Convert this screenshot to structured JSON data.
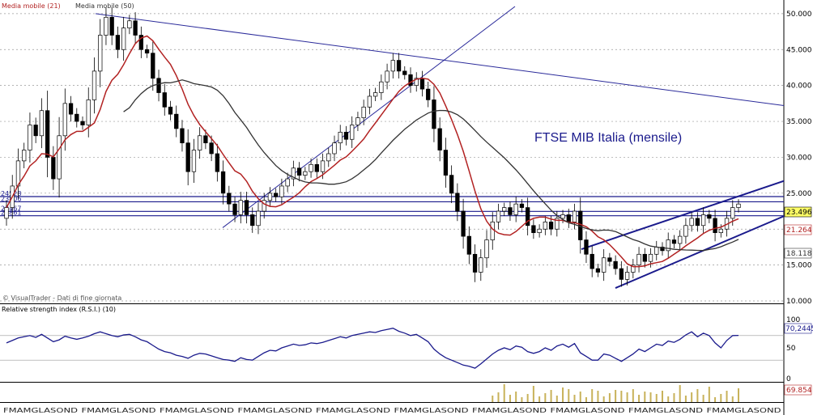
{
  "chart_data": {
    "type": "candlestick",
    "title": "FTSE MIB Italia (mensile)",
    "source_note": "© VisualTrader - Dati di fine giornata",
    "legend": [
      {
        "label": "Media mobile (21)",
        "color": "#b22222"
      },
      {
        "label": "Media mobile (50)",
        "color": "#333333"
      }
    ],
    "price_panel": {
      "ylim": [
        10000,
        51000
      ],
      "yticks": [
        "10.000",
        "15.000",
        "20.000",
        "25.000",
        "30.000",
        "35.000",
        "40.000",
        "45.000",
        "50.000"
      ],
      "ytick_values": [
        10000,
        15000,
        20000,
        25000,
        30000,
        35000,
        40000,
        45000,
        50000
      ],
      "last_price_label": "23.496",
      "last_price": 23496,
      "ma21_label": "21.264",
      "ma21_value": 21264,
      "ma50_label": "18.118",
      "ma50_value": 18118,
      "horizontal_levels": [
        {
          "label": "24528",
          "value": 24528
        },
        {
          "label": "23806",
          "value": 23806
        },
        {
          "label": "22467",
          "value": 22467
        },
        {
          "label": "21861",
          "value": 21861
        }
      ],
      "closes": [
        23000,
        26000,
        29500,
        31000,
        34500,
        33000,
        36500,
        30000,
        27000,
        33000,
        37500,
        36000,
        35000,
        34500,
        38000,
        42000,
        47000,
        49500,
        47000,
        45000,
        48000,
        49000,
        47000,
        45000,
        44500,
        41000,
        39000,
        37000,
        36000,
        34000,
        32000,
        28000,
        31000,
        33000,
        32000,
        30500,
        28000,
        25000,
        23500,
        22000,
        24000,
        22000,
        20500,
        22500,
        24000,
        25000,
        24500,
        26000,
        27000,
        28500,
        27500,
        28000,
        29000,
        28000,
        29500,
        30500,
        32000,
        33500,
        32500,
        34500,
        35500,
        37000,
        38500,
        39000,
        40500,
        42000,
        43500,
        42000,
        41500,
        40000,
        41000,
        39500,
        38000,
        34000,
        31000,
        27500,
        25000,
        22500,
        19000,
        16500,
        14000,
        16000,
        18500,
        21000,
        22500,
        23000,
        22000,
        23500,
        23000,
        20500,
        19500,
        20000,
        21000,
        20000,
        21500,
        22000,
        21000,
        22500,
        18500,
        16500,
        14500,
        14000,
        16000,
        15500,
        14500,
        13000,
        14000,
        15000,
        16500,
        15500,
        16500,
        17500,
        17000,
        18500,
        18000,
        19000,
        20500,
        21500,
        20500,
        22000,
        21500,
        19500,
        20000,
        21500,
        23000,
        23496
      ]
    },
    "rsi_panel": {
      "title": "Relative strength index (R.S.I.) (10)",
      "ylim": [
        0,
        100
      ],
      "yticks": [
        "0",
        "50",
        "100"
      ],
      "ytick_values": [
        0,
        50,
        100
      ],
      "levels": [
        30,
        70
      ],
      "last_label": "70,2445",
      "last_value": 70.2445,
      "values": [
        58,
        62,
        66,
        68,
        70,
        67,
        72,
        66,
        60,
        63,
        69,
        66,
        64,
        66,
        69,
        73,
        76,
        73,
        70,
        68,
        71,
        72,
        68,
        63,
        60,
        54,
        48,
        44,
        42,
        38,
        36,
        33,
        38,
        41,
        40,
        37,
        34,
        31,
        30,
        28,
        34,
        31,
        30,
        36,
        42,
        46,
        45,
        50,
        53,
        56,
        54,
        55,
        58,
        57,
        59,
        62,
        65,
        68,
        66,
        70,
        72,
        74,
        76,
        75,
        78,
        80,
        82,
        77,
        74,
        70,
        72,
        66,
        60,
        48,
        40,
        34,
        30,
        26,
        22,
        20,
        17,
        24,
        32,
        40,
        46,
        50,
        47,
        53,
        51,
        44,
        41,
        44,
        50,
        46,
        53,
        56,
        51,
        57,
        42,
        36,
        30,
        30,
        40,
        38,
        33,
        28,
        34,
        40,
        48,
        44,
        50,
        56,
        54,
        61,
        59,
        64,
        71,
        76,
        68,
        74,
        70,
        58,
        50,
        62,
        70,
        70.2445
      ]
    },
    "volume_panel": {
      "last_label": "69.854",
      "last_value": 69854
    },
    "x_axis": {
      "tick_label": "FMAMGLASOND"
    }
  }
}
